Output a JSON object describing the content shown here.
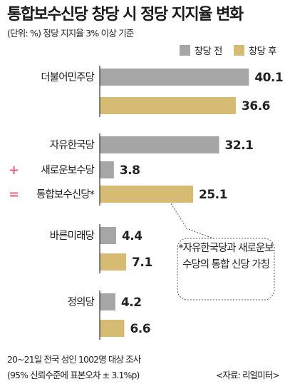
{
  "title": "통합보수신당 창당 시 정당 지지율 변화",
  "subtitle": "(단위: %)  정당 지지율 3% 이상 기준",
  "legend": {
    "before": "창당 전",
    "after": "창당 후"
  },
  "colors": {
    "before": "#a6a6a6",
    "after": "#d6bb72",
    "plus_sign": "#e0667a",
    "axis": "#333333"
  },
  "note": "*자유한국당과 새로운보수당의 통합 신당 가칭",
  "footer": {
    "survey": "20~21일 전국 성인 1002명 대상 조사",
    "margin": "(95% 신뢰수준에 표본오차 ± 3.1%p)",
    "source": "<자료: 리얼미터>"
  },
  "chart_data": {
    "type": "bar",
    "orientation": "horizontal",
    "title": "통합보수신당 창당 시 정당 지지율 변화",
    "unit": "%",
    "series": [
      {
        "name": "창당 전",
        "color": "#a6a6a6"
      },
      {
        "name": "창당 후",
        "color": "#d6bb72"
      }
    ],
    "rows": [
      {
        "label": "더불어민주당",
        "series": "창당 전",
        "value": 40.1,
        "group": "더불어민주당"
      },
      {
        "label": "",
        "series": "창당 후",
        "value": 36.6,
        "group": "더불어민주당"
      },
      {
        "label": "자유한국당",
        "series": "창당 전",
        "value": 32.1,
        "group": "통합보수신당"
      },
      {
        "label": "새로운보수당",
        "prefix": "+",
        "series": "창당 전",
        "value": 3.8,
        "group": "통합보수신당"
      },
      {
        "label": "통합보수신당*",
        "prefix": "=",
        "series": "창당 후",
        "value": 25.1,
        "group": "통합보수신당"
      },
      {
        "label": "바른미래당",
        "series": "창당 전",
        "value": 4.4,
        "group": "바른미래당"
      },
      {
        "label": "",
        "series": "창당 후",
        "value": 7.1,
        "group": "바른미래당"
      },
      {
        "label": "정의당",
        "series": "창당 전",
        "value": 4.2,
        "group": "정의당"
      },
      {
        "label": "",
        "series": "창당 후",
        "value": 6.6,
        "group": "정의당"
      }
    ]
  }
}
